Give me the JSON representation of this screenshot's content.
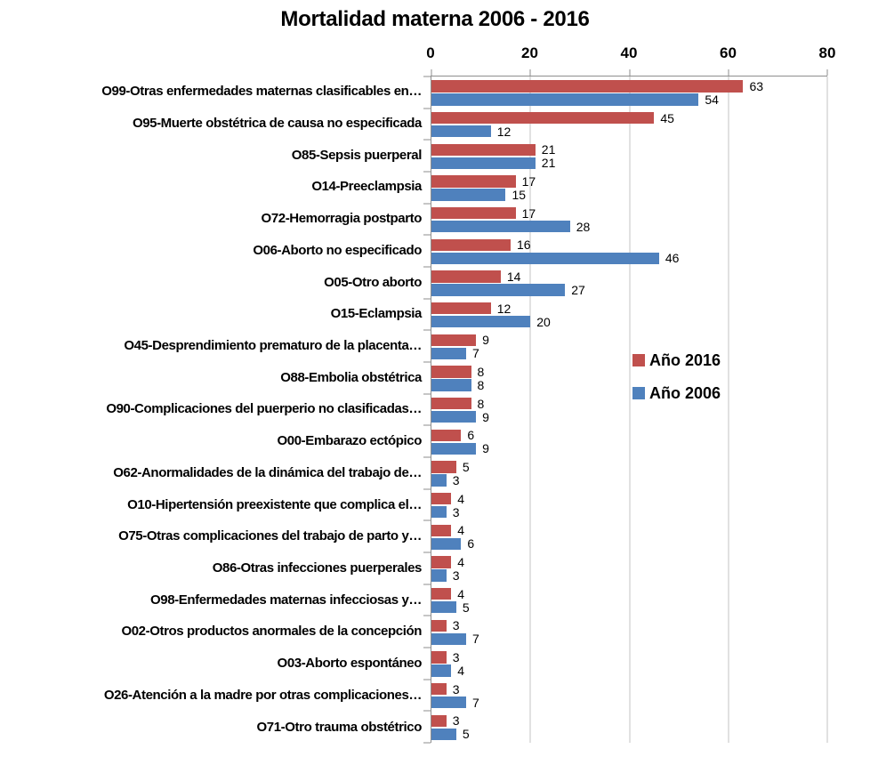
{
  "chart_data": {
    "type": "bar",
    "orientation": "horizontal",
    "title": "Mortalidad materna 2006 - 2016",
    "xlabel": "",
    "ylabel": "",
    "x_axis": {
      "min": 0,
      "max": 80,
      "ticks": [
        0,
        20,
        40,
        60,
        80
      ],
      "position": "top"
    },
    "grid": true,
    "data_labels": true,
    "legend_position": "middle-right",
    "categories": [
      "O99-Otras enfermedades maternas clasificables en…",
      "O95-Muerte obstétrica de causa no especificada",
      "O85-Sepsis puerperal",
      "O14-Preeclampsia",
      "O72-Hemorragia postparto",
      "O06-Aborto no especificado",
      "O05-Otro aborto",
      "O15-Eclampsia",
      "O45-Desprendimiento prematuro de la placenta…",
      "O88-Embolia obstétrica",
      "O90-Complicaciones del puerperio no clasificadas…",
      "O00-Embarazo ectópico",
      "O62-Anormalidades de la dinámica del trabajo de…",
      "O10-Hipertensión preexistente que complica el…",
      "O75-Otras complicaciones del trabajo de parto y…",
      "O86-Otras infecciones puerperales",
      "O98-Enfermedades maternas infecciosas y…",
      "O02-Otros productos anormales  de la concepción",
      "O03-Aborto espontáneo",
      "O26-Atención a la madre por otras complicaciones…",
      "O71-Otro trauma obstétrico"
    ],
    "series": [
      {
        "name": "Año 2016",
        "color": "#C0504D",
        "values": [
          63,
          45,
          21,
          17,
          17,
          16,
          14,
          12,
          9,
          8,
          8,
          6,
          5,
          4,
          4,
          4,
          4,
          3,
          3,
          3,
          3
        ]
      },
      {
        "name": "Año 2006",
        "color": "#4F81BD",
        "values": [
          54,
          12,
          21,
          15,
          28,
          46,
          27,
          20,
          7,
          8,
          9,
          9,
          3,
          3,
          6,
          3,
          5,
          7,
          4,
          7,
          5
        ]
      }
    ]
  },
  "colors": {
    "series_2016": "#C0504D",
    "series_2006": "#4F81BD",
    "gridline": "#C3C3C3",
    "axis_line": "#8E8E8E",
    "text": "#000000",
    "background": "#FFFFFF"
  }
}
